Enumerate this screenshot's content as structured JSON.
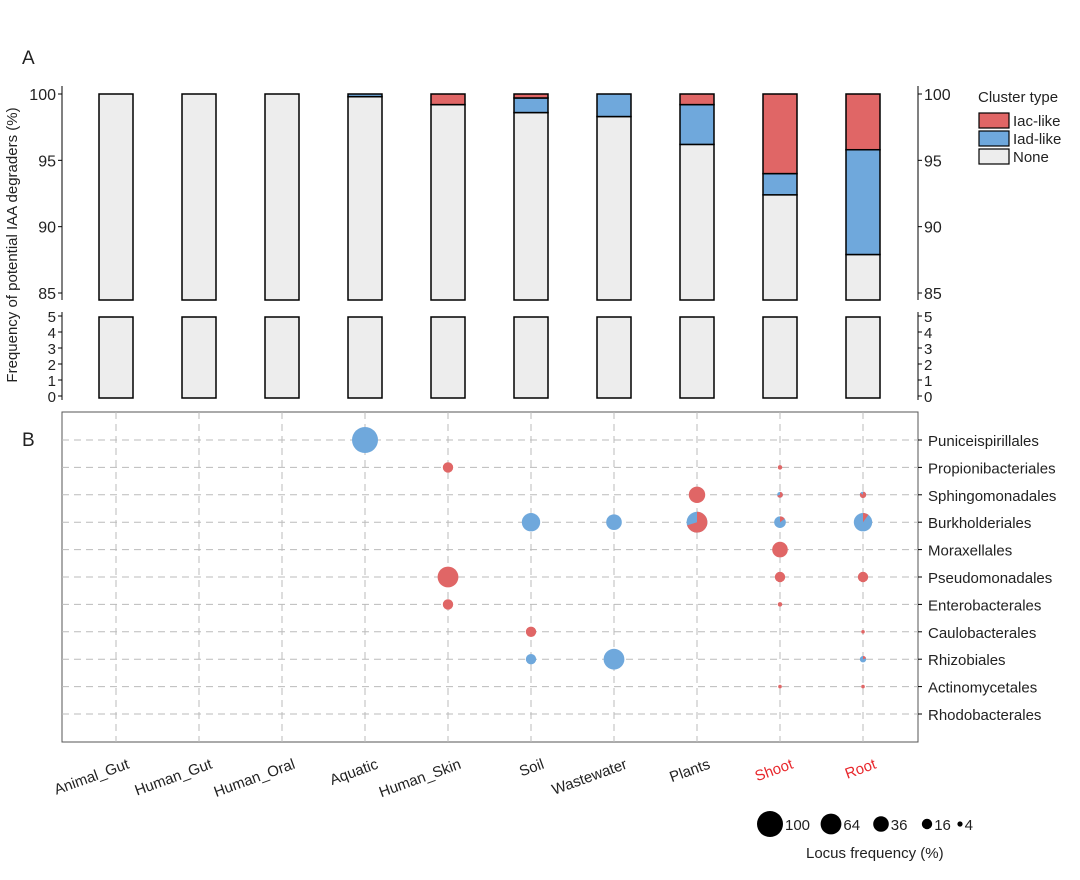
{
  "chart_data": [
    {
      "panel": "A",
      "type": "bar",
      "stacked": true,
      "ylabel": "Frequency of potential IAA degraders (%)",
      "axis_break": true,
      "ylim_lower": [
        0,
        5
      ],
      "ylim_upper": [
        85,
        100
      ],
      "yticks_lower": [
        0,
        1,
        2,
        3,
        4,
        5
      ],
      "yticks_upper": [
        85,
        90,
        95,
        100
      ],
      "categories": [
        "Animal_Gut",
        "Human_Gut",
        "Human_Oral",
        "Aquatic",
        "Human_Skin",
        "Soil",
        "Wastewater",
        "Plants",
        "Shoot",
        "Root"
      ],
      "highlight_categories": [
        "Shoot",
        "Root"
      ],
      "legend_title": "Cluster type",
      "legend_position": "top-right",
      "series": [
        {
          "name": "None",
          "color": "#ededed",
          "values": [
            100,
            100,
            100,
            99.8,
            99.2,
            98.6,
            98.3,
            96.2,
            92.4,
            87.9
          ]
        },
        {
          "name": "Iad-like",
          "color": "#6fa8dc",
          "values": [
            0,
            0,
            0,
            0.2,
            0,
            1.1,
            1.7,
            3.0,
            1.6,
            7.9
          ]
        },
        {
          "name": "Iac-like",
          "color": "#e06666",
          "values": [
            0,
            0,
            0,
            0,
            0.8,
            0.3,
            0,
            0.8,
            6.0,
            4.2
          ]
        }
      ]
    },
    {
      "panel": "B",
      "type": "scatter",
      "subtype": "pie-bubble",
      "grid": true,
      "rows": [
        "Puniceispirillales",
        "Propionibacteriales",
        "Sphingomonadales",
        "Burkholderiales",
        "Moraxellales",
        "Pseudomonadales",
        "Enterobacterales",
        "Caulobacterales",
        "Rhizobiales",
        "Actinomycetales",
        "Rhodobacterales"
      ],
      "size_legend_title": "Locus frequency (%)",
      "size_legend_values": [
        100,
        64,
        36,
        16,
        4
      ],
      "points": [
        {
          "x": "Aquatic",
          "y": "Puniceispirillales",
          "size": 100,
          "iac_fraction": 0
        },
        {
          "x": "Human_Skin",
          "y": "Propionibacteriales",
          "size": 16,
          "iac_fraction": 1
        },
        {
          "x": "Human_Skin",
          "y": "Pseudomonadales",
          "size": 64,
          "iac_fraction": 1
        },
        {
          "x": "Human_Skin",
          "y": "Enterobacterales",
          "size": 16,
          "iac_fraction": 1
        },
        {
          "x": "Soil",
          "y": "Burkholderiales",
          "size": 50,
          "iac_fraction": 0
        },
        {
          "x": "Soil",
          "y": "Caulobacterales",
          "size": 16,
          "iac_fraction": 1
        },
        {
          "x": "Soil",
          "y": "Rhizobiales",
          "size": 16,
          "iac_fraction": 0
        },
        {
          "x": "Wastewater",
          "y": "Burkholderiales",
          "size": 36,
          "iac_fraction": 0
        },
        {
          "x": "Wastewater",
          "y": "Rhizobiales",
          "size": 64,
          "iac_fraction": 0
        },
        {
          "x": "Plants",
          "y": "Sphingomonadales",
          "size": 40,
          "iac_fraction": 1
        },
        {
          "x": "Plants",
          "y": "Burkholderiales",
          "size": 64,
          "iac_fraction": 0.7
        },
        {
          "x": "Shoot",
          "y": "Propionibacteriales",
          "size": 3,
          "iac_fraction": 1
        },
        {
          "x": "Shoot",
          "y": "Sphingomonadales",
          "size": 5,
          "iac_fraction": 0.7
        },
        {
          "x": "Shoot",
          "y": "Burkholderiales",
          "size": 20,
          "iac_fraction": 0.15
        },
        {
          "x": "Shoot",
          "y": "Moraxellales",
          "size": 36,
          "iac_fraction": 1
        },
        {
          "x": "Shoot",
          "y": "Pseudomonadales",
          "size": 16,
          "iac_fraction": 1
        },
        {
          "x": "Shoot",
          "y": "Enterobacterales",
          "size": 3,
          "iac_fraction": 1
        },
        {
          "x": "Shoot",
          "y": "Actinomycetales",
          "size": 1,
          "iac_fraction": 1
        },
        {
          "x": "Root",
          "y": "Sphingomonadales",
          "size": 6,
          "iac_fraction": 0.85
        },
        {
          "x": "Root",
          "y": "Burkholderiales",
          "size": 50,
          "iac_fraction": 0.1
        },
        {
          "x": "Root",
          "y": "Pseudomonadales",
          "size": 16,
          "iac_fraction": 1
        },
        {
          "x": "Root",
          "y": "Caulobacterales",
          "size": 1,
          "iac_fraction": 1
        },
        {
          "x": "Root",
          "y": "Rhizobiales",
          "size": 6,
          "iac_fraction": 0.2
        },
        {
          "x": "Root",
          "y": "Actinomycetales",
          "size": 1,
          "iac_fraction": 1
        }
      ]
    }
  ],
  "labels": {
    "panel_a": "A",
    "panel_b": "B"
  },
  "colors": {
    "highlight": "#e8262b",
    "grid": "#bbbbbb"
  }
}
